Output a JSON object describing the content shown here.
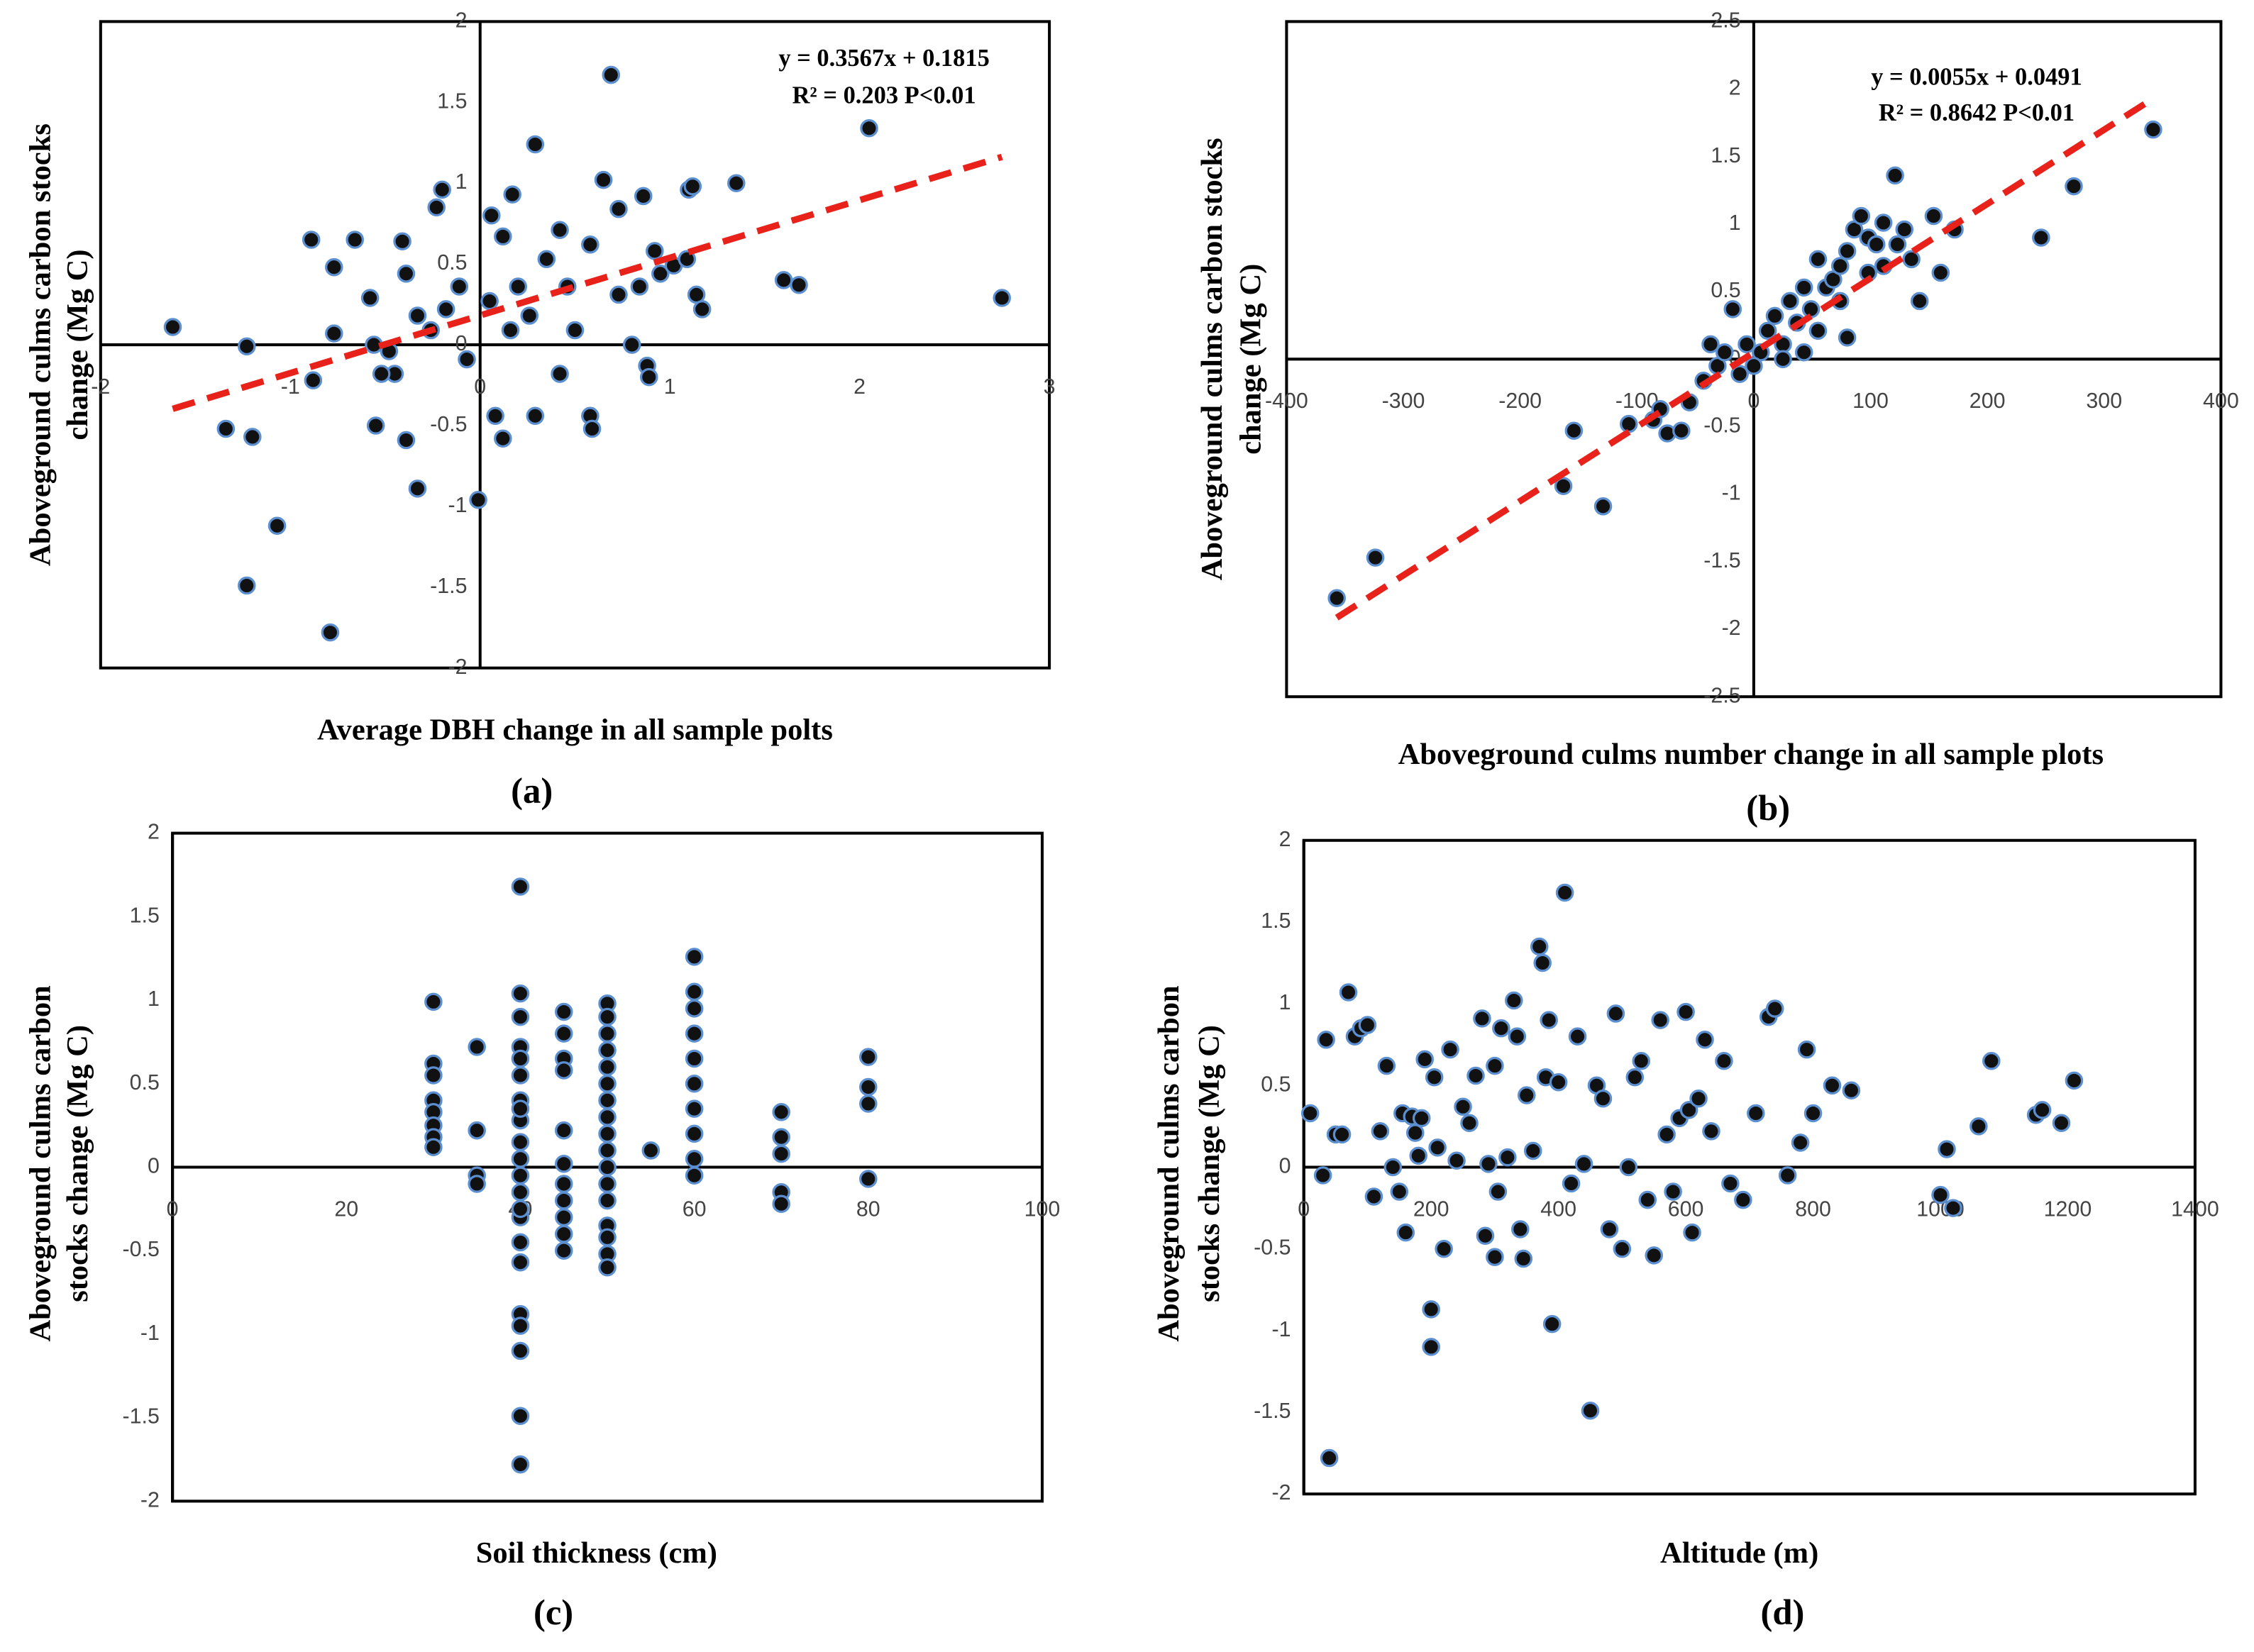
{
  "chart_data": [
    {
      "type": "scatter",
      "label": "(a)",
      "x_label": "Average DBH change in all sample polts",
      "y_label": [
        "Aboveground culms carbon stocks",
        "change (Mg C)"
      ],
      "annotations": [
        "y = 0.3567x + 0.1815",
        "R² = 0.203 P<0.01"
      ],
      "xlim": [
        -2,
        3
      ],
      "xticks": [
        -2,
        -1,
        0,
        1,
        2,
        3
      ],
      "ylim": [
        -2,
        2
      ],
      "yticks": [
        -2,
        -1.5,
        -1,
        -0.5,
        0,
        0.5,
        1,
        1.5,
        2
      ],
      "color": "#111111",
      "edge_color": "#5b8fd0",
      "grid": false,
      "trendline": {
        "slope": 0.3567,
        "intercept": 0.1815,
        "color": "#e8221b"
      },
      "x": [
        -1.62,
        -1.23,
        -1.34,
        -1.2,
        -1.07,
        -1.23,
        -0.79,
        -0.89,
        -0.77,
        -0.66,
        -0.77,
        -0.88,
        -0.58,
        -0.55,
        -0.41,
        -0.39,
        -0.2,
        -0.23,
        -0.33,
        -0.39,
        -0.01,
        -0.33,
        -0.26,
        -0.45,
        -0.48,
        -0.52,
        -0.56,
        -0.11,
        -0.18,
        -0.07,
        0.06,
        0.12,
        0.17,
        0.08,
        0.12,
        0.29,
        0.29,
        0.2,
        0.26,
        0.35,
        0.42,
        0.42,
        0.5,
        0.58,
        0.58,
        0.59,
        0.65,
        0.69,
        0.73,
        0.73,
        0.8,
        0.84,
        0.92,
        0.86,
        0.88,
        0.89,
        0.95,
        1.02,
        1.1,
        1.12,
        1.14,
        1.17,
        1.09,
        1.35,
        1.6,
        1.68,
        2.05,
        2.75,
        0.46,
        0.05,
        0.16
      ],
      "y": [
        0.11,
        -0.01,
        -0.52,
        -0.57,
        -1.12,
        -1.49,
        -1.78,
        0.65,
        0.48,
        0.65,
        0.07,
        -0.22,
        0.29,
        -0.5,
        0.64,
        0.44,
        0.96,
        0.85,
        -0.89,
        -0.59,
        -0.96,
        0.18,
        0.09,
        -0.18,
        -0.04,
        -0.18,
        0,
        0.36,
        0.22,
        -0.09,
        0.8,
        0.67,
        0.93,
        -0.44,
        -0.58,
        1.24,
        -0.44,
        0.36,
        0.18,
        0.53,
        0.71,
        -0.18,
        0.09,
        0.62,
        -0.44,
        -0.52,
        1.02,
        1.67,
        0.84,
        0.31,
        0,
        0.36,
        0.58,
        0.92,
        -0.13,
        -0.2,
        0.44,
        0.49,
        0.96,
        0.98,
        0.31,
        0.22,
        0.53,
        1.0,
        0.4,
        0.37,
        1.34,
        0.29,
        0.36,
        0.27,
        0.09
      ]
    },
    {
      "type": "scatter",
      "label": "(b)",
      "x_label": "Aboveground culms number change in all sample plots",
      "y_label": [
        "Aboveground culms carbon stocks",
        "change (Mg C)"
      ],
      "annotations": [
        "y = 0.0055x + 0.0491",
        "R² = 0.8642 P<0.01"
      ],
      "xlim": [
        -400,
        400
      ],
      "xticks": [
        -400,
        -300,
        -200,
        -100,
        0,
        100,
        200,
        300,
        400
      ],
      "ylim": [
        -2.5,
        2.5
      ],
      "yticks": [
        -2.5,
        -2,
        -1.5,
        -1,
        -0.5,
        0,
        0.5,
        1,
        1.5,
        2,
        2.5
      ],
      "color": "#111111",
      "edge_color": "#5b8fd0",
      "grid": false,
      "trendline": {
        "slope": 0.0055,
        "intercept": 0.0491,
        "color": "#e8221b"
      },
      "x": [
        -357,
        -324,
        -154,
        -163,
        -129,
        -107,
        -86,
        -74,
        -62,
        -80,
        -55,
        -43,
        -31,
        -25,
        -12,
        -18,
        -6,
        6,
        12,
        18,
        25,
        31,
        37,
        43,
        49,
        55,
        62,
        68,
        74,
        80,
        86,
        92,
        98,
        105,
        111,
        121,
        111,
        123,
        129,
        135,
        142,
        154,
        160,
        172,
        246,
        274,
        342,
        43,
        25,
        80,
        74,
        55,
        98,
        -37,
        0
      ],
      "y": [
        -1.77,
        -1.47,
        -0.53,
        -0.94,
        -1.09,
        -0.48,
        -0.45,
        -0.55,
        -0.53,
        -0.37,
        -0.32,
        -0.16,
        -0.05,
        0.05,
        -0.11,
        0.37,
        0.11,
        0.05,
        0.21,
        0.32,
        0.11,
        0.43,
        0.27,
        0.53,
        0.37,
        0.74,
        0.53,
        0.59,
        0.69,
        0.8,
        0.96,
        1.06,
        0.9,
        0.85,
        1.01,
        1.36,
        0.69,
        0.85,
        0.96,
        0.74,
        0.43,
        1.06,
        0.64,
        0.96,
        0.9,
        1.28,
        1.7,
        0.05,
        0,
        0.16,
        0.43,
        0.21,
        0.64,
        0.11,
        -0.05
      ]
    },
    {
      "type": "scatter",
      "label": "(c)",
      "x_label": "Soil thickness (cm)",
      "y_label": [
        "Aboveground culms carbon",
        "stocks change (Mg C)"
      ],
      "xlim": [
        0,
        100
      ],
      "xticks": [
        0,
        20,
        40,
        60,
        80,
        100
      ],
      "ylim": [
        -2,
        2
      ],
      "yticks": [
        -2,
        -1.5,
        -1,
        -0.5,
        0,
        0.5,
        1,
        1.5,
        2
      ],
      "color": "#111111",
      "edge_color": "#5b8fd0",
      "grid": false,
      "x": [
        30,
        30,
        30,
        30,
        30,
        30,
        30,
        30,
        35,
        35,
        35,
        35,
        40,
        40,
        40,
        40,
        40,
        40,
        40,
        40,
        40,
        40,
        40,
        40,
        40,
        40,
        40,
        40,
        40,
        40,
        40,
        40,
        40,
        40,
        45,
        45,
        45,
        45,
        45,
        45,
        45,
        45,
        45,
        45,
        45,
        50,
        50,
        50,
        50,
        50,
        50,
        50,
        50,
        50,
        50,
        50,
        50,
        50,
        50,
        50,
        50,
        50,
        55,
        60,
        60,
        60,
        60,
        60,
        60,
        60,
        60,
        60,
        60,
        70,
        70,
        70,
        70,
        70,
        80,
        80,
        80,
        80
      ],
      "y": [
        0.99,
        0.62,
        0.55,
        0.4,
        0.33,
        0.25,
        0.18,
        0.12,
        0.72,
        0.22,
        -0.05,
        -0.1,
        1.68,
        1.04,
        0.9,
        0.72,
        0.55,
        0.4,
        0.28,
        0.15,
        0.05,
        -0.05,
        -0.15,
        -0.3,
        -0.45,
        -0.57,
        -0.88,
        -0.95,
        -1.1,
        -1.49,
        -1.78,
        0.65,
        0.35,
        -0.25,
        0.93,
        0.8,
        0.65,
        0.58,
        0.22,
        0.02,
        -0.1,
        -0.2,
        -0.3,
        -0.4,
        -0.5,
        0.98,
        0.9,
        0.8,
        0.7,
        0.6,
        0.5,
        0.4,
        0.3,
        0.2,
        0.1,
        0.0,
        -0.1,
        -0.2,
        -0.35,
        -0.42,
        -0.52,
        -0.6,
        0.1,
        1.26,
        1.05,
        0.95,
        0.8,
        0.65,
        0.5,
        0.35,
        0.2,
        0.05,
        -0.05,
        0.33,
        0.18,
        0.08,
        -0.15,
        -0.22,
        0.66,
        0.48,
        0.38,
        -0.07
      ]
    },
    {
      "type": "scatter",
      "label": "(d)",
      "x_label": "Altitude (m)",
      "y_label": [
        "Aboveground culms carbon",
        "stocks change (Mg C)"
      ],
      "xlim": [
        0,
        1400
      ],
      "xticks": [
        0,
        200,
        400,
        600,
        800,
        1000,
        1200,
        1400
      ],
      "ylim": [
        -2,
        2
      ],
      "yticks": [
        -2,
        -1.5,
        -1,
        -0.5,
        0,
        0.5,
        1,
        1.5,
        2
      ],
      "color": "#111111",
      "edge_color": "#5b8fd0",
      "grid": false,
      "x": [
        10,
        30,
        35,
        40,
        50,
        60,
        70,
        80,
        90,
        100,
        110,
        120,
        130,
        140,
        150,
        155,
        160,
        170,
        175,
        180,
        185,
        190,
        200,
        200,
        205,
        210,
        220,
        230,
        240,
        250,
        260,
        270,
        280,
        285,
        290,
        300,
        300,
        305,
        310,
        320,
        330,
        335,
        340,
        345,
        350,
        360,
        370,
        375,
        380,
        385,
        390,
        400,
        410,
        420,
        430,
        440,
        450,
        460,
        470,
        480,
        490,
        500,
        510,
        520,
        530,
        540,
        550,
        560,
        570,
        580,
        590,
        600,
        605,
        610,
        620,
        630,
        640,
        660,
        670,
        690,
        710,
        730,
        740,
        760,
        780,
        790,
        800,
        830,
        860,
        1000,
        1010,
        1020,
        1060,
        1080,
        1150,
        1160,
        1190,
        1210
      ],
      "y": [
        0.33,
        -0.05,
        0.78,
        -1.78,
        0.2,
        0.2,
        1.07,
        0.8,
        0.85,
        0.87,
        -0.18,
        0.22,
        0.62,
        0.0,
        -0.15,
        0.33,
        -0.4,
        0.31,
        0.21,
        0.07,
        0.3,
        0.66,
        -0.87,
        -1.1,
        0.55,
        0.12,
        -0.5,
        0.72,
        0.04,
        0.37,
        0.27,
        0.56,
        0.91,
        -0.42,
        0.02,
        0.62,
        -0.55,
        -0.15,
        0.85,
        0.06,
        1.02,
        0.8,
        -0.38,
        -0.56,
        0.44,
        0.1,
        1.35,
        1.25,
        0.55,
        0.9,
        -0.96,
        0.52,
        1.68,
        -0.1,
        0.8,
        0.02,
        -1.49,
        0.5,
        0.42,
        -0.38,
        0.94,
        -0.5,
        0.0,
        0.55,
        0.65,
        -0.2,
        -0.54,
        0.9,
        0.2,
        -0.15,
        0.3,
        0.95,
        0.35,
        -0.4,
        0.42,
        0.78,
        0.22,
        0.65,
        -0.1,
        -0.2,
        0.33,
        0.92,
        0.97,
        -0.05,
        0.15,
        0.72,
        0.33,
        0.5,
        0.47,
        -0.17,
        0.11,
        -0.25,
        0.25,
        0.65,
        0.32,
        0.35,
        0.27,
        0.53
      ]
    }
  ]
}
